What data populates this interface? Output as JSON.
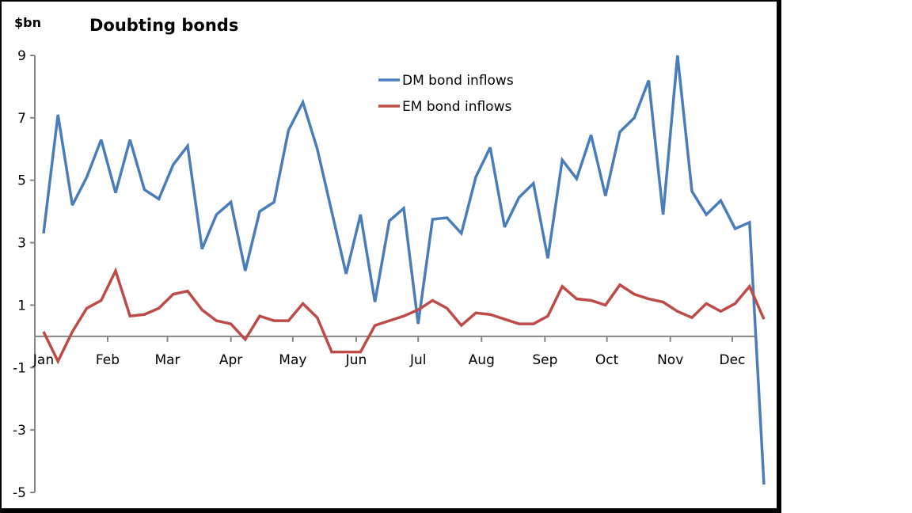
{
  "chart_data": {
    "type": "line",
    "title": "Doubting bonds",
    "ylabel": "$bn",
    "xlabel": "",
    "ylim": [
      -5,
      9
    ],
    "yticks": [
      9,
      7,
      5,
      3,
      1,
      -1,
      -3,
      -5
    ],
    "xlim": [
      0,
      50
    ],
    "xticks": [
      {
        "label": "Jan",
        "pos": 0
      },
      {
        "label": "Feb",
        "pos": 4.45
      },
      {
        "label": "Mar",
        "pos": 8.6
      },
      {
        "label": "Apr",
        "pos": 13.0
      },
      {
        "label": "May",
        "pos": 17.3
      },
      {
        "label": "Jun",
        "pos": 21.7
      },
      {
        "label": "Jul",
        "pos": 26.0
      },
      {
        "label": "Aug",
        "pos": 30.4
      },
      {
        "label": "Sep",
        "pos": 34.8
      },
      {
        "label": "Oct",
        "pos": 39.1
      },
      {
        "label": "Nov",
        "pos": 43.5
      },
      {
        "label": "Dec",
        "pos": 47.8
      }
    ],
    "grid": false,
    "legend_position": "top-center",
    "series": [
      {
        "name": "DM bond inflows",
        "color": "#4a7ebb",
        "values": [
          3.3,
          7.1,
          4.2,
          5.1,
          6.3,
          4.6,
          6.3,
          4.7,
          4.4,
          5.5,
          6.1,
          2.8,
          3.9,
          4.3,
          2.1,
          4.0,
          4.3,
          6.6,
          7.5,
          6.0,
          4.0,
          2.0,
          3.9,
          1.1,
          3.7,
          4.1,
          0.4,
          3.75,
          3.8,
          3.3,
          5.1,
          6.05,
          3.5,
          4.45,
          4.9,
          2.5,
          5.65,
          5.05,
          6.45,
          4.5,
          6.55,
          7.0,
          8.2,
          3.9,
          9.0,
          4.65,
          3.9,
          4.35,
          3.45,
          3.65,
          -4.75
        ]
      },
      {
        "name": "EM bond inflows",
        "color": "#be4b48",
        "values": [
          0.15,
          -0.8,
          0.15,
          0.9,
          1.15,
          2.1,
          0.65,
          0.7,
          0.9,
          1.35,
          1.45,
          0.85,
          0.5,
          0.4,
          -0.1,
          0.65,
          0.5,
          0.5,
          1.05,
          0.6,
          -0.5,
          -0.5,
          -0.5,
          0.35,
          0.5,
          0.65,
          0.85,
          1.15,
          0.9,
          0.35,
          0.75,
          0.7,
          0.55,
          0.4,
          0.4,
          0.65,
          1.6,
          1.2,
          1.15,
          1.0,
          1.65,
          1.35,
          1.2,
          1.1,
          0.8,
          0.6,
          1.05,
          0.8,
          1.05,
          1.6,
          0.55
        ]
      }
    ]
  }
}
